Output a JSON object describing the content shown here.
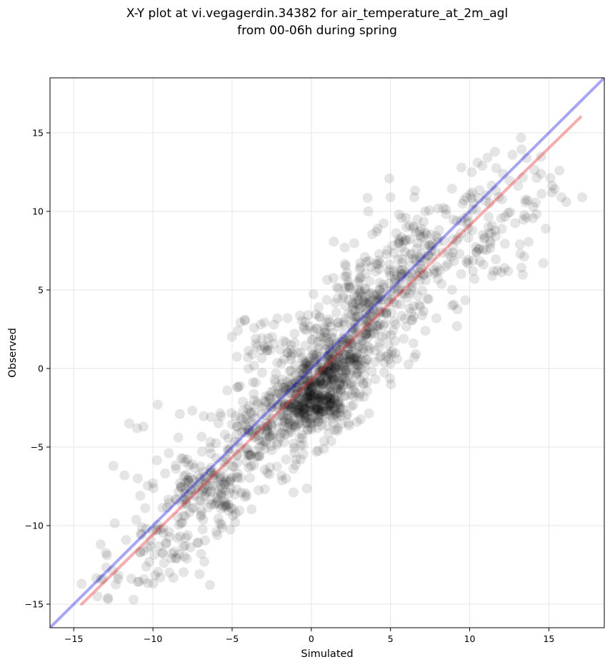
{
  "chart_data": {
    "type": "scatter",
    "title_line1": "X-Y plot at vi.vegagerdin.34382 for air_temperature_at_2m_agl",
    "title_line2": "from 00-06h during spring",
    "xlabel": "Simulated",
    "ylabel": "Observed",
    "xlim": [
      -16.5,
      18.5
    ],
    "ylim": [
      -16.5,
      18.5
    ],
    "xticks": [
      -15,
      -10,
      -5,
      0,
      5,
      10,
      15
    ],
    "yticks": [
      -15,
      -10,
      -5,
      0,
      5,
      10,
      15
    ],
    "xtick_labels": [
      "−15",
      "−10",
      "−5",
      "0",
      "5",
      "10",
      "15"
    ],
    "ytick_labels": [
      "−15",
      "−10",
      "−5",
      "0",
      "5",
      "10",
      "15"
    ],
    "grid": true,
    "colors": {
      "points": "#000000",
      "identity_line": "#0000ee",
      "fit_line": "#ee2222"
    },
    "identity_line": {
      "x": [
        -16.5,
        18.5
      ],
      "y": [
        -16.5,
        18.5
      ]
    },
    "fit_line": {
      "x": [
        -14.5,
        17.0
      ],
      "y": [
        -15.0,
        16.0
      ]
    },
    "point_clusters": [
      {
        "x": 0.0,
        "y": -2.0,
        "sx": 1.2,
        "sy": 1.1,
        "n": 380
      },
      {
        "x": 1.5,
        "y": 0.5,
        "sx": 1.3,
        "sy": 1.3,
        "n": 260
      },
      {
        "x": 3.5,
        "y": 3.5,
        "sx": 1.4,
        "sy": 1.6,
        "n": 220
      },
      {
        "x": 6.5,
        "y": 7.0,
        "sx": 1.4,
        "sy": 1.8,
        "n": 130
      },
      {
        "x": 10.5,
        "y": 8.5,
        "sx": 1.9,
        "sy": 1.8,
        "n": 95
      },
      {
        "x": 13.5,
        "y": 11.0,
        "sx": 1.4,
        "sy": 1.4,
        "n": 30
      },
      {
        "x": -3.0,
        "y": -4.0,
        "sx": 1.5,
        "sy": 1.5,
        "n": 170
      },
      {
        "x": -6.5,
        "y": -8.0,
        "sx": 1.5,
        "sy": 1.3,
        "n": 170
      },
      {
        "x": -9.5,
        "y": -11.5,
        "sx": 1.3,
        "sy": 1.1,
        "n": 60
      },
      {
        "x": -12.5,
        "y": -13.5,
        "sx": 1.0,
        "sy": 0.8,
        "n": 14
      },
      {
        "x": -2.5,
        "y": 1.5,
        "sx": 1.3,
        "sy": 1.0,
        "n": 40
      }
    ],
    "points_sparse": [
      [
        -14.5,
        -13.7
      ],
      [
        -13.5,
        -14.5
      ],
      [
        -12.5,
        -6.2
      ],
      [
        -11.8,
        -6.8
      ],
      [
        -11.5,
        -3.5
      ],
      [
        -11.0,
        -3.8
      ],
      [
        -10.6,
        -3.7
      ],
      [
        -9.7,
        -2.3
      ],
      [
        -8.3,
        -2.9
      ],
      [
        -10.0,
        -7.3
      ],
      [
        -4.2,
        3.1
      ],
      [
        -4.0,
        0.7
      ],
      [
        -3.2,
        2.8
      ],
      [
        -1.5,
        3.2
      ],
      [
        -0.2,
        3.4
      ],
      [
        3.6,
        10.0
      ],
      [
        5.0,
        10.9
      ],
      [
        6.5,
        10.9
      ],
      [
        7.2,
        10.0
      ],
      [
        6.0,
        9.0
      ],
      [
        10.5,
        13.1
      ],
      [
        10.8,
        12.9
      ],
      [
        11.6,
        13.8
      ],
      [
        12.7,
        13.6
      ],
      [
        13.6,
        13.4
      ],
      [
        12.1,
        12.4
      ],
      [
        14.5,
        12.4
      ],
      [
        15.2,
        11.2
      ],
      [
        15.8,
        10.9
      ],
      [
        16.1,
        10.6
      ],
      [
        17.1,
        10.9
      ],
      [
        14.8,
        8.9
      ],
      [
        13.2,
        7.3
      ],
      [
        12.2,
        6.4
      ],
      [
        11.5,
        6.2
      ],
      [
        10.3,
        5.7
      ],
      [
        8.9,
        4.0
      ],
      [
        9.2,
        2.7
      ],
      [
        7.9,
        3.2
      ],
      [
        7.2,
        2.4
      ],
      [
        6.5,
        0.7
      ],
      [
        5.0,
        0.3
      ],
      [
        4.4,
        0.8
      ],
      [
        3.3,
        -1.0
      ],
      [
        2.5,
        -2.4
      ],
      [
        1.2,
        -3.0
      ],
      [
        0.4,
        -3.8
      ],
      [
        -2.5,
        -5.2
      ],
      [
        -3.8,
        -6.2
      ],
      [
        -6.0,
        -10.4
      ],
      [
        -7.2,
        -11.1
      ],
      [
        -8.5,
        -12.1
      ],
      [
        -7.5,
        -6.1
      ],
      [
        -6.9,
        -5.3
      ],
      [
        -8.4,
        -4.4
      ],
      [
        -9.0,
        -5.4
      ],
      [
        -10.8,
        -8.1
      ],
      [
        -13.3,
        -11.2
      ],
      [
        -12.9,
        -11.9
      ],
      [
        -10.8,
        -11.7
      ]
    ]
  }
}
